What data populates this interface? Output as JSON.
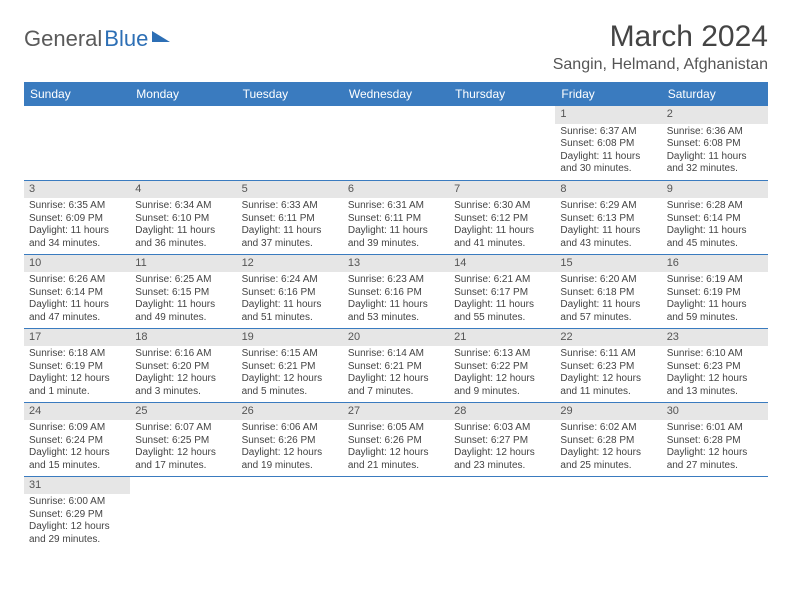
{
  "logo": {
    "text1": "General",
    "text2": "Blue"
  },
  "title": {
    "month": "March 2024",
    "location": "Sangin, Helmand, Afghanistan"
  },
  "colors": {
    "header_bg": "#3a7bbf",
    "daynum_bg": "#e6e6e6",
    "rule": "#3a7bbf"
  },
  "weekdays": [
    "Sunday",
    "Monday",
    "Tuesday",
    "Wednesday",
    "Thursday",
    "Friday",
    "Saturday"
  ],
  "weeks": [
    [
      null,
      null,
      null,
      null,
      null,
      {
        "n": "1",
        "sunrise": "Sunrise: 6:37 AM",
        "sunset": "Sunset: 6:08 PM",
        "day1": "Daylight: 11 hours",
        "day2": "and 30 minutes."
      },
      {
        "n": "2",
        "sunrise": "Sunrise: 6:36 AM",
        "sunset": "Sunset: 6:08 PM",
        "day1": "Daylight: 11 hours",
        "day2": "and 32 minutes."
      }
    ],
    [
      {
        "n": "3",
        "sunrise": "Sunrise: 6:35 AM",
        "sunset": "Sunset: 6:09 PM",
        "day1": "Daylight: 11 hours",
        "day2": "and 34 minutes."
      },
      {
        "n": "4",
        "sunrise": "Sunrise: 6:34 AM",
        "sunset": "Sunset: 6:10 PM",
        "day1": "Daylight: 11 hours",
        "day2": "and 36 minutes."
      },
      {
        "n": "5",
        "sunrise": "Sunrise: 6:33 AM",
        "sunset": "Sunset: 6:11 PM",
        "day1": "Daylight: 11 hours",
        "day2": "and 37 minutes."
      },
      {
        "n": "6",
        "sunrise": "Sunrise: 6:31 AM",
        "sunset": "Sunset: 6:11 PM",
        "day1": "Daylight: 11 hours",
        "day2": "and 39 minutes."
      },
      {
        "n": "7",
        "sunrise": "Sunrise: 6:30 AM",
        "sunset": "Sunset: 6:12 PM",
        "day1": "Daylight: 11 hours",
        "day2": "and 41 minutes."
      },
      {
        "n": "8",
        "sunrise": "Sunrise: 6:29 AM",
        "sunset": "Sunset: 6:13 PM",
        "day1": "Daylight: 11 hours",
        "day2": "and 43 minutes."
      },
      {
        "n": "9",
        "sunrise": "Sunrise: 6:28 AM",
        "sunset": "Sunset: 6:14 PM",
        "day1": "Daylight: 11 hours",
        "day2": "and 45 minutes."
      }
    ],
    [
      {
        "n": "10",
        "sunrise": "Sunrise: 6:26 AM",
        "sunset": "Sunset: 6:14 PM",
        "day1": "Daylight: 11 hours",
        "day2": "and 47 minutes."
      },
      {
        "n": "11",
        "sunrise": "Sunrise: 6:25 AM",
        "sunset": "Sunset: 6:15 PM",
        "day1": "Daylight: 11 hours",
        "day2": "and 49 minutes."
      },
      {
        "n": "12",
        "sunrise": "Sunrise: 6:24 AM",
        "sunset": "Sunset: 6:16 PM",
        "day1": "Daylight: 11 hours",
        "day2": "and 51 minutes."
      },
      {
        "n": "13",
        "sunrise": "Sunrise: 6:23 AM",
        "sunset": "Sunset: 6:16 PM",
        "day1": "Daylight: 11 hours",
        "day2": "and 53 minutes."
      },
      {
        "n": "14",
        "sunrise": "Sunrise: 6:21 AM",
        "sunset": "Sunset: 6:17 PM",
        "day1": "Daylight: 11 hours",
        "day2": "and 55 minutes."
      },
      {
        "n": "15",
        "sunrise": "Sunrise: 6:20 AM",
        "sunset": "Sunset: 6:18 PM",
        "day1": "Daylight: 11 hours",
        "day2": "and 57 minutes."
      },
      {
        "n": "16",
        "sunrise": "Sunrise: 6:19 AM",
        "sunset": "Sunset: 6:19 PM",
        "day1": "Daylight: 11 hours",
        "day2": "and 59 minutes."
      }
    ],
    [
      {
        "n": "17",
        "sunrise": "Sunrise: 6:18 AM",
        "sunset": "Sunset: 6:19 PM",
        "day1": "Daylight: 12 hours",
        "day2": "and 1 minute."
      },
      {
        "n": "18",
        "sunrise": "Sunrise: 6:16 AM",
        "sunset": "Sunset: 6:20 PM",
        "day1": "Daylight: 12 hours",
        "day2": "and 3 minutes."
      },
      {
        "n": "19",
        "sunrise": "Sunrise: 6:15 AM",
        "sunset": "Sunset: 6:21 PM",
        "day1": "Daylight: 12 hours",
        "day2": "and 5 minutes."
      },
      {
        "n": "20",
        "sunrise": "Sunrise: 6:14 AM",
        "sunset": "Sunset: 6:21 PM",
        "day1": "Daylight: 12 hours",
        "day2": "and 7 minutes."
      },
      {
        "n": "21",
        "sunrise": "Sunrise: 6:13 AM",
        "sunset": "Sunset: 6:22 PM",
        "day1": "Daylight: 12 hours",
        "day2": "and 9 minutes."
      },
      {
        "n": "22",
        "sunrise": "Sunrise: 6:11 AM",
        "sunset": "Sunset: 6:23 PM",
        "day1": "Daylight: 12 hours",
        "day2": "and 11 minutes."
      },
      {
        "n": "23",
        "sunrise": "Sunrise: 6:10 AM",
        "sunset": "Sunset: 6:23 PM",
        "day1": "Daylight: 12 hours",
        "day2": "and 13 minutes."
      }
    ],
    [
      {
        "n": "24",
        "sunrise": "Sunrise: 6:09 AM",
        "sunset": "Sunset: 6:24 PM",
        "day1": "Daylight: 12 hours",
        "day2": "and 15 minutes."
      },
      {
        "n": "25",
        "sunrise": "Sunrise: 6:07 AM",
        "sunset": "Sunset: 6:25 PM",
        "day1": "Daylight: 12 hours",
        "day2": "and 17 minutes."
      },
      {
        "n": "26",
        "sunrise": "Sunrise: 6:06 AM",
        "sunset": "Sunset: 6:26 PM",
        "day1": "Daylight: 12 hours",
        "day2": "and 19 minutes."
      },
      {
        "n": "27",
        "sunrise": "Sunrise: 6:05 AM",
        "sunset": "Sunset: 6:26 PM",
        "day1": "Daylight: 12 hours",
        "day2": "and 21 minutes."
      },
      {
        "n": "28",
        "sunrise": "Sunrise: 6:03 AM",
        "sunset": "Sunset: 6:27 PM",
        "day1": "Daylight: 12 hours",
        "day2": "and 23 minutes."
      },
      {
        "n": "29",
        "sunrise": "Sunrise: 6:02 AM",
        "sunset": "Sunset: 6:28 PM",
        "day1": "Daylight: 12 hours",
        "day2": "and 25 minutes."
      },
      {
        "n": "30",
        "sunrise": "Sunrise: 6:01 AM",
        "sunset": "Sunset: 6:28 PM",
        "day1": "Daylight: 12 hours",
        "day2": "and 27 minutes."
      }
    ],
    [
      {
        "n": "31",
        "sunrise": "Sunrise: 6:00 AM",
        "sunset": "Sunset: 6:29 PM",
        "day1": "Daylight: 12 hours",
        "day2": "and 29 minutes."
      },
      null,
      null,
      null,
      null,
      null,
      null
    ]
  ]
}
